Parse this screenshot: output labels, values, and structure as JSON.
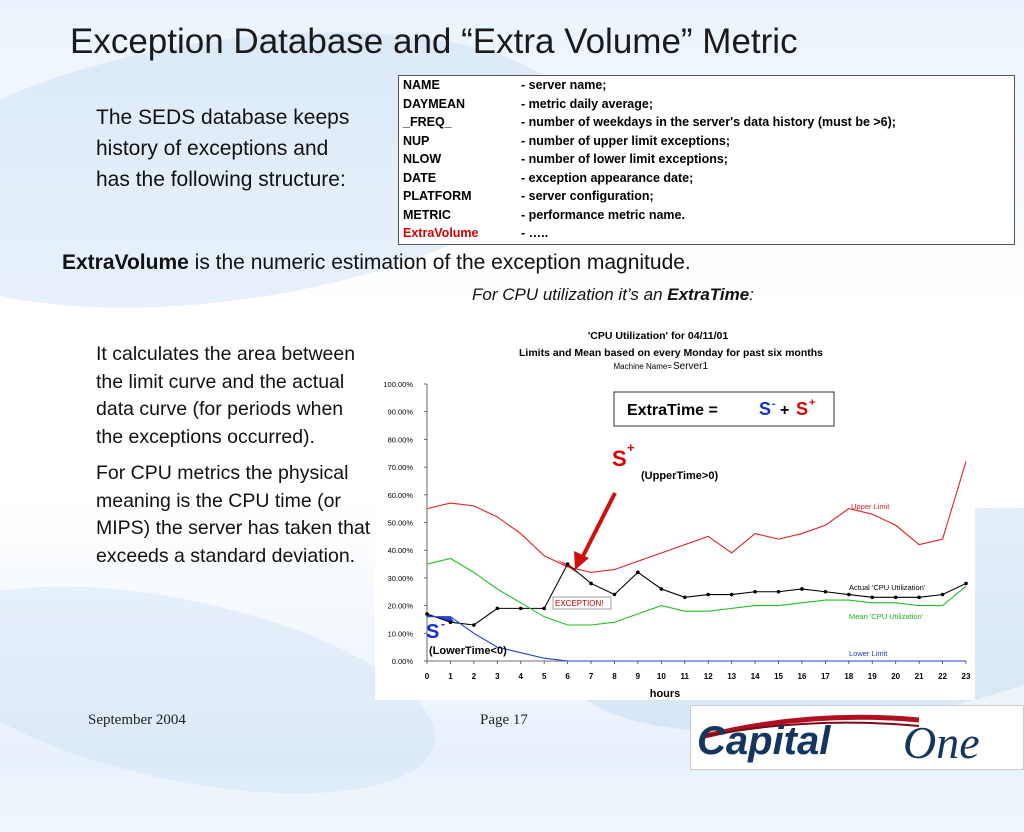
{
  "slide": {
    "title": "Exception Database and “Extra Volume” Metric",
    "intro": "The SEDS database keeps history of exceptions and has the following structure:",
    "structure": [
      {
        "key": "NAME",
        "desc": "- server name;"
      },
      {
        "key": "DAYMEAN",
        "desc": "- metric daily average;"
      },
      {
        "key": "_FREQ_",
        "desc": "- number of weekdays in the server's data history (must be >6);"
      },
      {
        "key": "NUP",
        "desc": "- number of upper limit exceptions;"
      },
      {
        "key": "NLOW",
        "desc": "- number of lower limit exceptions;"
      },
      {
        "key": "DATE",
        "desc": "- exception appearance date;"
      },
      {
        "key": "PLATFORM",
        "desc": "- server configuration;"
      },
      {
        "key": "METRIC",
        "desc": "- performance metric name."
      },
      {
        "key": "ExtraVolume",
        "desc": "- ….."
      }
    ],
    "extra_bold": "ExtraVolume",
    "extra_rest": " is the numeric estimation of the exception magnitude.",
    "for_cpu_prefix": "For CPU utilization it’s an ",
    "for_cpu_bold": "ExtraTime",
    "for_cpu_suffix": ":",
    "calc_para1": "It calculates the area between the limit curve and the actual data curve (for periods when the exceptions occurred).",
    "calc_para2": "For CPU metrics the physical meaning is the CPU time (or MIPS) the server has taken that exceeds a standard deviation.",
    "footer_date": "September 2004",
    "footer_page": "Page 17",
    "logo_text_1": "Capital",
    "logo_text_2": "One"
  },
  "chart_data": {
    "type": "line",
    "title": "'CPU Utilization' for  04/11/01",
    "subtitle": "Limits and Mean based on every  Monday  for past six months",
    "machine_label": "Machine Name= ",
    "machine_name": "Server1",
    "xlabel": "hours",
    "ylabel": "",
    "x": [
      0,
      1,
      2,
      3,
      4,
      5,
      6,
      7,
      8,
      9,
      10,
      11,
      12,
      13,
      14,
      15,
      16,
      17,
      18,
      19,
      20,
      21,
      22,
      23
    ],
    "ylim": [
      0,
      100
    ],
    "yticks": [
      "0.00%",
      "10.00%",
      "20.00%",
      "30.00%",
      "40.00%",
      "50.00%",
      "60.00%",
      "70.00%",
      "80.00%",
      "90.00%",
      "100.00%"
    ],
    "series": [
      {
        "name": "Upper Limit",
        "color": "#e02020",
        "values": [
          55,
          57,
          56,
          52,
          46,
          38,
          34,
          32,
          33,
          36,
          39,
          42,
          45,
          39,
          46,
          44,
          46,
          49,
          55,
          53,
          49,
          42,
          44,
          72
        ]
      },
      {
        "name": "Actual 'CPU Utilization'",
        "color": "#000000",
        "values": [
          17,
          14,
          13,
          19,
          19,
          19,
          35,
          28,
          24,
          32,
          26,
          23,
          24,
          24,
          25,
          25,
          26,
          25,
          24,
          23,
          23,
          23,
          24,
          28
        ]
      },
      {
        "name": "Mean 'CPU Utilization'",
        "color": "#20c020",
        "values": [
          35,
          37,
          32,
          26,
          21,
          16,
          13,
          13,
          14,
          17,
          20,
          18,
          18,
          19,
          20,
          20,
          21,
          22,
          22,
          21,
          21,
          20,
          20,
          27
        ]
      },
      {
        "name": "Lower Limit",
        "color": "#2040d0",
        "values": [
          16,
          16,
          10,
          5,
          3,
          1,
          0,
          0,
          0,
          0,
          0,
          0,
          0,
          0,
          0,
          0,
          0,
          0,
          0,
          0,
          0,
          0,
          0,
          0
        ]
      }
    ],
    "annotations": {
      "box_text": "ExtraTime = ",
      "s_minus": "S",
      "s_minus_sup": "-",
      "plus": "+ ",
      "s_plus": "S",
      "s_plus_sup": "+",
      "upper_time": "(UpperTime>0)",
      "lower_time": "(LowerTime<0)",
      "exception": "EXCEPTION!",
      "upper_limit_label": "Upper Limit",
      "actual_label": "Actual 'CPU Utilization'",
      "mean_label": "Mean 'CPU Utilization'",
      "lower_limit_label": "Lower Limit"
    }
  }
}
